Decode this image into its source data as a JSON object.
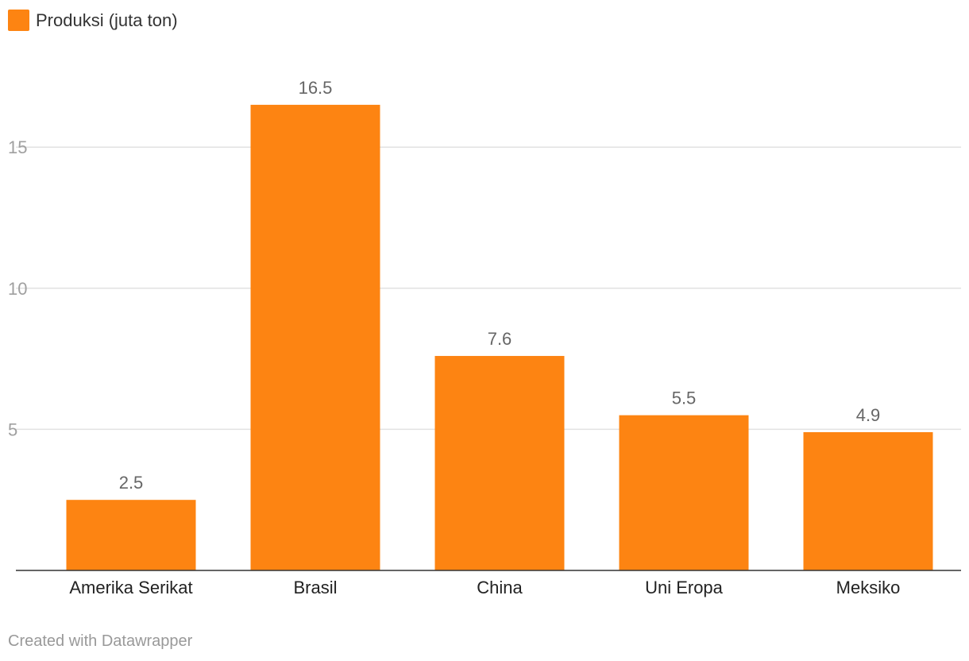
{
  "chart_data": {
    "type": "bar",
    "title": "",
    "xlabel": "",
    "ylabel": "",
    "legend": {
      "position": "top-left",
      "entries": [
        {
          "label": "Produksi (juta ton)",
          "color": "#fd8412"
        }
      ]
    },
    "categories": [
      "Amerika Serikat",
      "Brasil",
      "China",
      "Uni Eropa",
      "Meksiko"
    ],
    "series": [
      {
        "name": "Produksi (juta ton)",
        "color": "#fd8412",
        "values": [
          2.5,
          16.5,
          7.6,
          5.5,
          4.9
        ],
        "value_labels": [
          "2.5",
          "16.5",
          "7.6",
          "5.5",
          "4.9"
        ]
      }
    ],
    "yticks": [
      5,
      10,
      15
    ],
    "ytick_labels": [
      "5",
      "10",
      "15"
    ],
    "ylim": [
      0,
      19.2
    ],
    "grid": true
  },
  "footer": {
    "credit": "Created with Datawrapper"
  }
}
